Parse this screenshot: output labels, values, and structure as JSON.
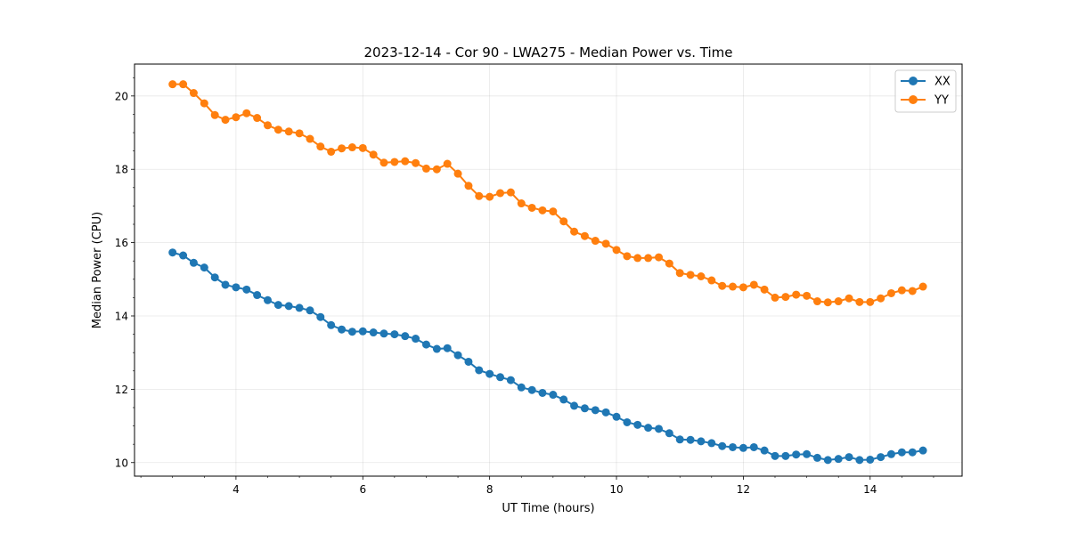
{
  "chart_data": {
    "type": "line",
    "title": "2023-12-14 - Cor 90 - LWA275 - Median Power vs. Time",
    "xlabel": "UT Time (hours)",
    "ylabel": "Median Power (CPU)",
    "xlim": [
      2.4,
      15.45
    ],
    "ylim": [
      9.63,
      20.87
    ],
    "xticks": [
      4,
      6,
      8,
      10,
      12,
      14
    ],
    "xtick_labels": [
      "4",
      "6",
      "8",
      "10",
      "12",
      "14"
    ],
    "yticks": [
      10,
      12,
      14,
      16,
      18,
      20
    ],
    "ytick_labels": [
      "10",
      "12",
      "14",
      "16",
      "18",
      "20"
    ],
    "grid": true,
    "legend_position": "top-right",
    "x": [
      3.0,
      3.167,
      3.333,
      3.5,
      3.667,
      3.833,
      4.0,
      4.167,
      4.333,
      4.5,
      4.667,
      4.833,
      5.0,
      5.167,
      5.333,
      5.5,
      5.667,
      5.833,
      6.0,
      6.167,
      6.333,
      6.5,
      6.667,
      6.833,
      7.0,
      7.167,
      7.333,
      7.5,
      7.667,
      7.833,
      8.0,
      8.167,
      8.333,
      8.5,
      8.667,
      8.833,
      9.0,
      9.167,
      9.333,
      9.5,
      9.667,
      9.833,
      10.0,
      10.167,
      10.333,
      10.5,
      10.667,
      10.833,
      11.0,
      11.167,
      11.333,
      11.5,
      11.667,
      11.833,
      12.0,
      12.167,
      12.333,
      12.5,
      12.667,
      12.833,
      13.0,
      13.167,
      13.333,
      13.5,
      13.667,
      13.833,
      14.0,
      14.167,
      14.333,
      14.5,
      14.667,
      14.833
    ],
    "series": [
      {
        "name": "XX",
        "color": "#1f77b4",
        "values": [
          15.73,
          15.65,
          15.45,
          15.32,
          15.05,
          14.85,
          14.78,
          14.72,
          14.57,
          14.43,
          14.3,
          14.27,
          14.22,
          14.15,
          13.97,
          13.75,
          13.63,
          13.57,
          13.58,
          13.55,
          13.52,
          13.5,
          13.45,
          13.38,
          13.22,
          13.1,
          13.12,
          12.93,
          12.75,
          12.52,
          12.42,
          12.33,
          12.25,
          12.05,
          11.98,
          11.9,
          11.85,
          11.72,
          11.55,
          11.48,
          11.43,
          11.37,
          11.25,
          11.1,
          11.03,
          10.95,
          10.92,
          10.8,
          10.63,
          10.62,
          10.58,
          10.53,
          10.45,
          10.42,
          10.4,
          10.42,
          10.33,
          10.18,
          10.18,
          10.22,
          10.23,
          10.13,
          10.07,
          10.1,
          10.15,
          10.07,
          10.08,
          10.15,
          10.23,
          10.28,
          10.28,
          10.33
        ]
      },
      {
        "name": "YY",
        "color": "#ff7f0e",
        "values": [
          20.32,
          20.32,
          20.08,
          19.8,
          19.48,
          19.35,
          19.42,
          19.53,
          19.4,
          19.2,
          19.08,
          19.03,
          18.98,
          18.83,
          18.62,
          18.48,
          18.57,
          18.6,
          18.58,
          18.4,
          18.18,
          18.2,
          18.22,
          18.17,
          18.02,
          18.0,
          18.15,
          17.88,
          17.55,
          17.27,
          17.25,
          17.35,
          17.37,
          17.07,
          16.95,
          16.88,
          16.85,
          16.58,
          16.3,
          16.18,
          16.05,
          15.97,
          15.8,
          15.63,
          15.58,
          15.58,
          15.6,
          15.43,
          15.17,
          15.12,
          15.08,
          14.97,
          14.82,
          14.8,
          14.78,
          14.85,
          14.72,
          14.5,
          14.52,
          14.58,
          14.55,
          14.4,
          14.37,
          14.4,
          14.48,
          14.38,
          14.38,
          14.48,
          14.62,
          14.7,
          14.68,
          14.8
        ]
      }
    ]
  }
}
